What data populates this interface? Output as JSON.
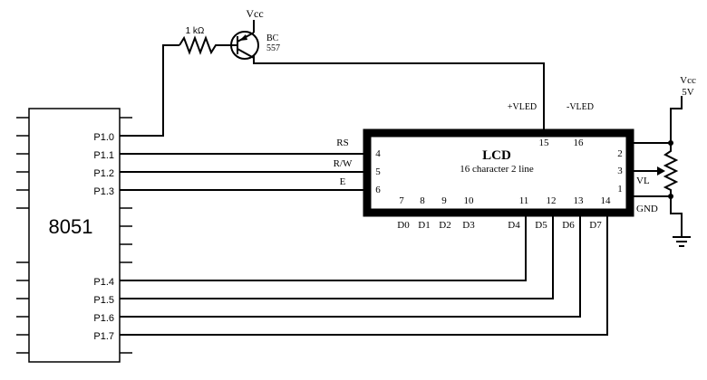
{
  "mcu": {
    "name": "8051",
    "pins": [
      "P1.0",
      "P1.1",
      "P1.2",
      "P1.3",
      "P1.4",
      "P1.5",
      "P1.6",
      "P1.7"
    ]
  },
  "lcd": {
    "title": "LCD",
    "subtitle": "16 character 2 line",
    "control_labels": [
      "RS",
      "R/W",
      "E"
    ],
    "left_pin_numbers": [
      "4",
      "5",
      "6"
    ],
    "right_pin_numbers": [
      "2",
      "3",
      "1"
    ],
    "top_pin_numbers": [
      "15",
      "16"
    ],
    "top_labels": [
      "+VLED",
      "-VLED"
    ],
    "bottom_pin_numbers": [
      "7",
      "8",
      "9",
      "10",
      "11",
      "12",
      "13",
      "14"
    ],
    "data_labels": [
      "D0",
      "D1",
      "D2",
      "D3",
      "D4",
      "D5",
      "D6",
      "D7"
    ]
  },
  "resistor": {
    "label": "1 kΩ"
  },
  "transistor": {
    "vcc": "Vcc",
    "part_line1": "BC",
    "part_line2": "557"
  },
  "supply": {
    "line1": "Vcc",
    "line2": "5V"
  },
  "pot": {
    "vl_label": "VL",
    "gnd_label": "GND"
  }
}
